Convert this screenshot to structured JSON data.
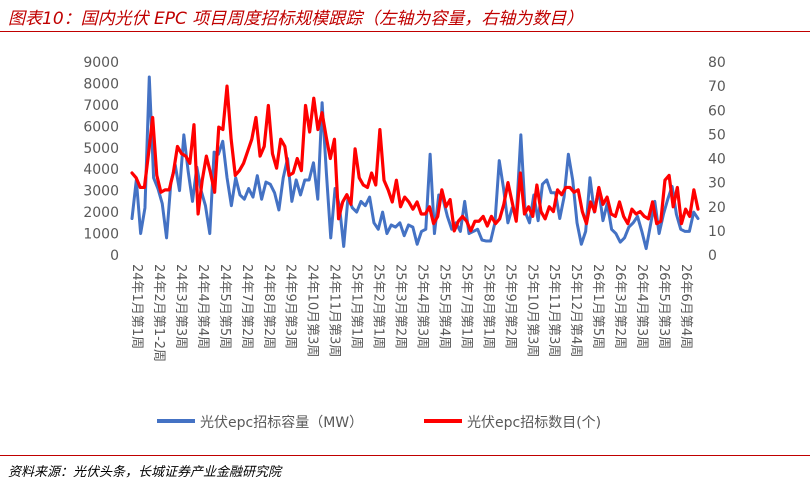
{
  "title": "图表10：国内光伏 EPC 项目周度招标规模跟踪（左轴为容量，右轴为数目）",
  "source": "资料来源：光伏头条，长城证券产业金融研究院",
  "chart_data": {
    "type": "line",
    "y_left": {
      "min": 0,
      "max": 9000,
      "step": 1000,
      "ticks": [
        "0",
        "1000",
        "2000",
        "3000",
        "4000",
        "5000",
        "6000",
        "7000",
        "8000",
        "9000"
      ]
    },
    "y_right": {
      "min": 0,
      "max": 80,
      "step": 10,
      "ticks": [
        "0",
        "10",
        "20",
        "30",
        "40",
        "50",
        "60",
        "70",
        "80"
      ]
    },
    "x_labels": [
      "24年1月第1周",
      "24年2月第1-2周",
      "24年3月第3周",
      "24年4月第4周",
      "24年5月第5周",
      "24年7月第2周",
      "24年8月第2周",
      "24年9月第3周",
      "24年10月第3周",
      "24年11月第3周",
      "25年1月第1周",
      "25年2月第1周",
      "25年3月第2周",
      "25年4月第3周",
      "25年5月第4周",
      "25年7月第1周",
      "25年8月第1周",
      "25年9月第2周",
      "25年10月第3周",
      "25年11月第3周",
      "25年12月第4周",
      "26年1月第5周",
      "26年3月第2周",
      "26年4月第3周",
      "26年5月第3周",
      "26年6月第4周"
    ],
    "series": [
      {
        "name": "光伏epc招标容量（MW）",
        "axis": "left",
        "color": "#4472c4",
        "values": [
          1700,
          3500,
          1000,
          2200,
          8300,
          3600,
          3100,
          2400,
          800,
          3400,
          4200,
          3000,
          5600,
          3900,
          2500,
          4100,
          3000,
          2300,
          1000,
          4800,
          4700,
          5300,
          3600,
          2300,
          3600,
          2800,
          2600,
          3100,
          2700,
          3700,
          2600,
          3400,
          3300,
          2900,
          2100,
          3600,
          4500,
          2500,
          3500,
          2800,
          3500,
          3500,
          4300,
          2600,
          7100,
          3800,
          800,
          3100,
          2300,
          400,
          2700,
          2200,
          2000,
          2500,
          2300,
          2700,
          1500,
          1200,
          2000,
          1000,
          1400,
          1300,
          1500,
          900,
          1400,
          1300,
          500,
          1100,
          1200,
          4700,
          1000,
          2800,
          2600,
          1800,
          1200,
          1500,
          1100,
          2500,
          1000,
          1100,
          1200,
          700,
          650,
          650,
          1500,
          4400,
          3100,
          1500,
          2200,
          2000,
          5600,
          2000,
          1500,
          2800,
          1600,
          3300,
          3500,
          2900,
          2900,
          1700,
          2700,
          4700,
          3500,
          1500,
          500,
          1100,
          3600,
          2000,
          3100,
          1600,
          2400,
          1200,
          1000,
          600,
          800,
          1300,
          1500,
          1800,
          1100,
          300,
          1400,
          2500,
          1000,
          1900,
          2600,
          3200,
          1900,
          1200,
          1100,
          1100,
          2000,
          1700
        ]
      },
      {
        "name": "光伏epc招标数目(个)",
        "axis": "right",
        "color": "#ff0000",
        "values": [
          34,
          32,
          28,
          28,
          42,
          57,
          33,
          26,
          27,
          27,
          34,
          45,
          42,
          41,
          38,
          54,
          17,
          31,
          41,
          34,
          26,
          53,
          52,
          70,
          48,
          33,
          35,
          38,
          43,
          48,
          57,
          41,
          45,
          62,
          42,
          36,
          48,
          45,
          33,
          34,
          40,
          35,
          62,
          51,
          65,
          52,
          59,
          49,
          40,
          48,
          15,
          22,
          25,
          21,
          44,
          32,
          29,
          28,
          34,
          29,
          52,
          31,
          27,
          22,
          31,
          20,
          24,
          22,
          19,
          22,
          17,
          17,
          20,
          13,
          16,
          27,
          20,
          23,
          10,
          14,
          16,
          14,
          10,
          14,
          14,
          16,
          12,
          16,
          13,
          15,
          21,
          30,
          22,
          14,
          34,
          17,
          20,
          16,
          29,
          18,
          15,
          20,
          18,
          27,
          25,
          28,
          28,
          26,
          27,
          18,
          13,
          22,
          18,
          28,
          21,
          24,
          17,
          16,
          22,
          16,
          13,
          19,
          17,
          18,
          16,
          15,
          22,
          13,
          14,
          31,
          33,
          20,
          28,
          13,
          19,
          16,
          27,
          19
        ]
      }
    ],
    "legend": {
      "position": "bottom"
    },
    "grid": false
  }
}
